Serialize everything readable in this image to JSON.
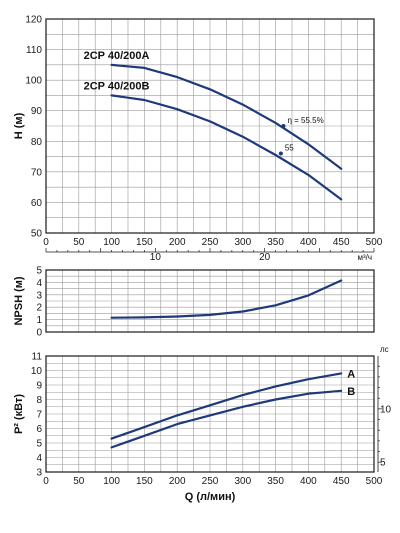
{
  "chart_data": [
    {
      "type": "line",
      "ylabel": "H (м)",
      "xlim": [
        0,
        500
      ],
      "ylim": [
        50,
        120
      ],
      "x_ticks": [
        0,
        50,
        100,
        150,
        200,
        250,
        300,
        350,
        400,
        450,
        500
      ],
      "y_ticks": [
        50,
        60,
        70,
        80,
        90,
        100,
        110,
        120
      ],
      "secondary_x_ticks": [
        "10",
        "20"
      ],
      "secondary_x_unit": "м³/ч",
      "grid": true,
      "series": [
        {
          "name": "2CP 40/200A",
          "x": [
            100,
            150,
            200,
            250,
            300,
            350,
            400,
            450
          ],
          "y": [
            105,
            104,
            101,
            97,
            92,
            86,
            79,
            71
          ]
        },
        {
          "name": "2CP 40/200B",
          "x": [
            100,
            150,
            200,
            250,
            300,
            350,
            400,
            450
          ],
          "y": [
            95,
            93.5,
            90.5,
            86.5,
            81.5,
            75.5,
            69,
            61
          ]
        }
      ],
      "annotations": [
        {
          "text": "η = 55.5%",
          "x": 362,
          "y": 85
        },
        {
          "text": "55",
          "x": 358,
          "y": 76
        }
      ]
    },
    {
      "type": "line",
      "ylabel": "NPSH (м)",
      "xlim": [
        0,
        500
      ],
      "ylim": [
        0,
        5
      ],
      "y_ticks": [
        0,
        1,
        2,
        3,
        4,
        5
      ],
      "grid": true,
      "series": [
        {
          "x": [
            100,
            150,
            200,
            250,
            300,
            350,
            400,
            450
          ],
          "y": [
            1.15,
            1.18,
            1.25,
            1.38,
            1.65,
            2.15,
            2.95,
            4.15
          ]
        }
      ]
    },
    {
      "type": "line",
      "ylabel": "P² (кВт)",
      "xlabel": "Q (л/мин)",
      "xlim": [
        0,
        500
      ],
      "ylim": [
        3,
        11
      ],
      "x_ticks": [
        0,
        50,
        100,
        150,
        200,
        250,
        300,
        350,
        400,
        450,
        500
      ],
      "y_ticks": [
        3,
        4,
        5,
        6,
        7,
        8,
        9,
        10,
        11
      ],
      "secondary_y_ticks": [
        "10",
        "5"
      ],
      "secondary_y_unit": "лс",
      "grid": true,
      "series": [
        {
          "name": "A",
          "x": [
            100,
            150,
            200,
            250,
            300,
            350,
            400,
            450
          ],
          "y": [
            5.3,
            6.1,
            6.9,
            7.6,
            8.3,
            8.9,
            9.4,
            9.8
          ]
        },
        {
          "name": "B",
          "x": [
            100,
            150,
            200,
            250,
            300,
            350,
            400,
            450
          ],
          "y": [
            4.7,
            5.5,
            6.3,
            6.9,
            7.5,
            8.0,
            8.4,
            8.6
          ]
        }
      ]
    }
  ],
  "colors": {
    "curve": "#1f3a7a",
    "grid": "#9a9a9a",
    "frame": "#1a1a1a"
  }
}
